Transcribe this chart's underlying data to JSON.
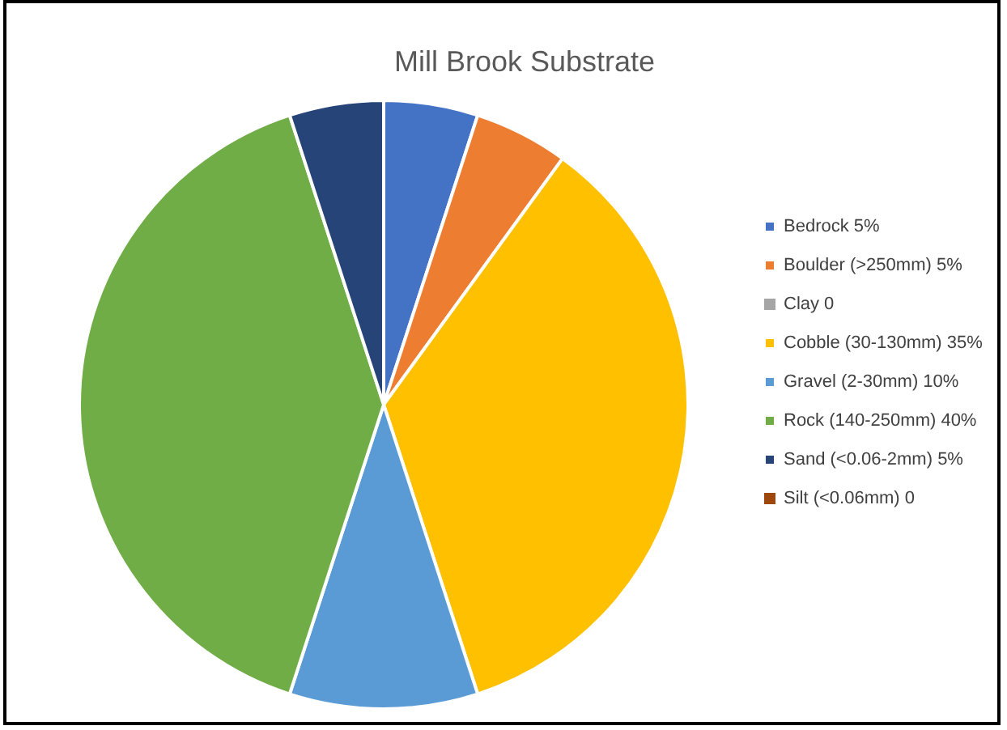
{
  "chart_data": {
    "type": "pie",
    "title": "Mill Brook Substrate",
    "categories": [
      "Bedrock 5%",
      "Boulder (>250mm) 5%",
      "Clay 0",
      "Cobble (30-130mm) 35%",
      "Gravel (2-30mm) 10%",
      "Rock (140-250mm) 40%",
      "Sand (<0.06-2mm) 5%",
      "Silt (<0.06mm) 0"
    ],
    "values": [
      5,
      5,
      0,
      35,
      10,
      40,
      5,
      0
    ],
    "colors": [
      "#4472c4",
      "#ed7d31",
      "#a5a5a5",
      "#ffc000",
      "#5b9bd5",
      "#70ad47",
      "#264478",
      "#9e480e"
    ],
    "legend": "right"
  }
}
